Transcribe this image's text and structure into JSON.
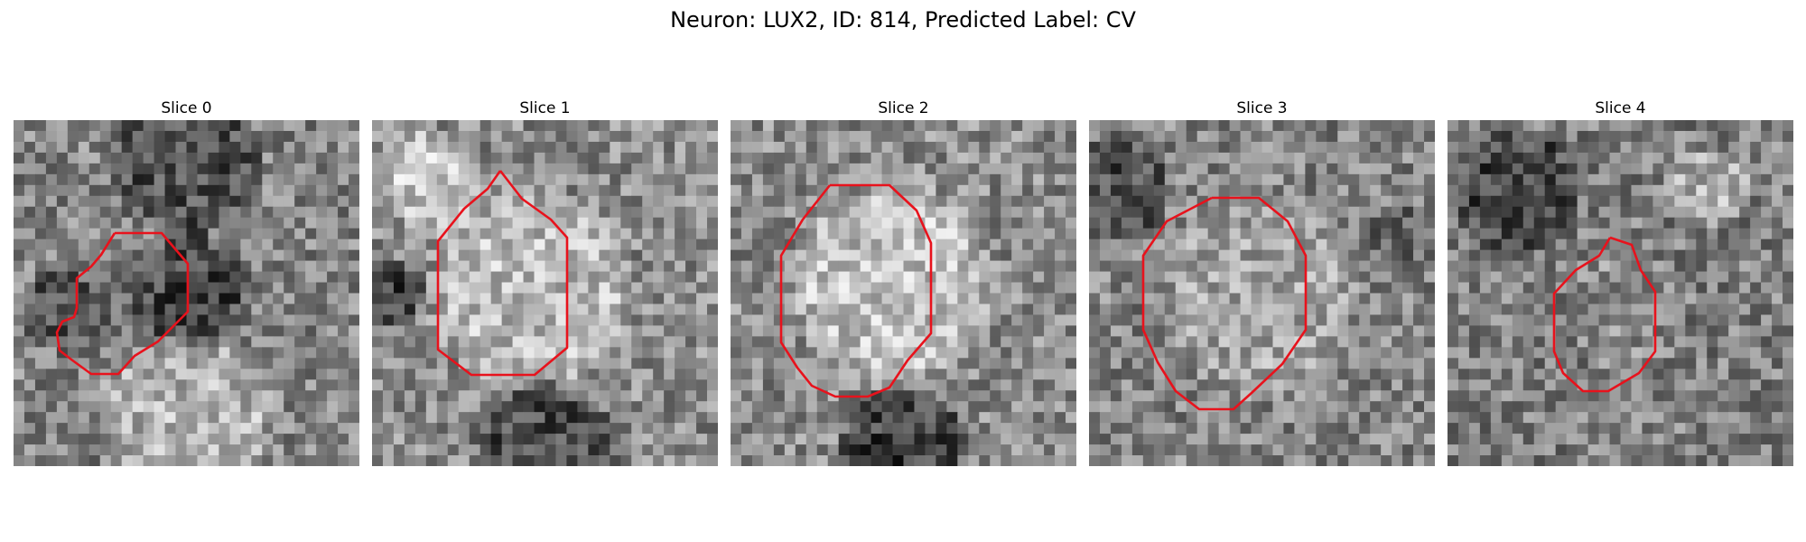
{
  "figure": {
    "title": "Neuron: LUX2, ID: 814, Predicted Label: CV"
  },
  "panels": [
    {
      "title": "Slice 0"
    },
    {
      "title": "Slice 1"
    },
    {
      "title": "Slice 2"
    },
    {
      "title": "Slice 3"
    },
    {
      "title": "Slice 4"
    }
  ],
  "colors": {
    "contour": "#e8121c",
    "background": "#ffffff"
  }
}
